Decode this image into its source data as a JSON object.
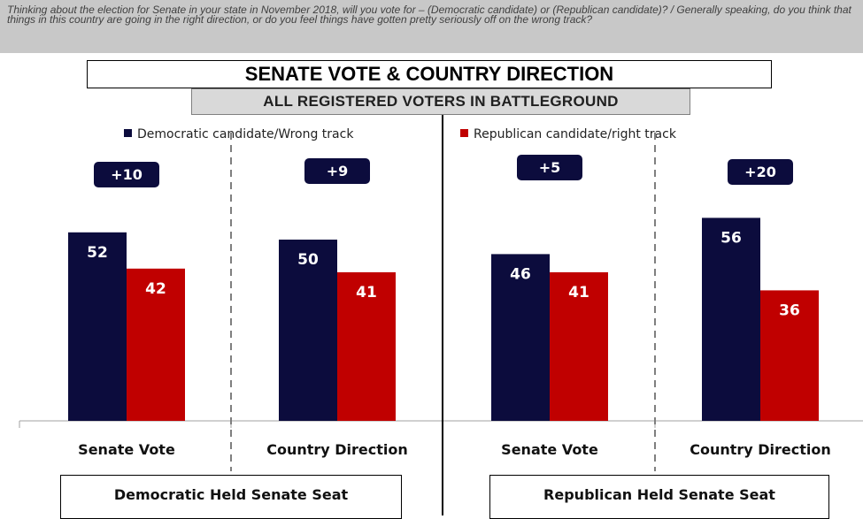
{
  "question": "Thinking about the election for Senate in your state in November 2018, will you vote for – (Democratic candidate) or (Republican candidate)? / Generally speaking, do you think that things in this country are going in the right direction, or do you feel things have gotten pretty seriously off on the wrong track?",
  "colors": {
    "democratic": "#0c0c3d",
    "republican": "#c00000",
    "margin_badge": "#0c0c3d"
  },
  "chart_data": {
    "type": "bar",
    "title": "SENATE VOTE & COUNTRY DIRECTION",
    "subtitle": "ALL REGISTERED VOTERS IN BATTLEGROUND",
    "categories": [
      "Senate Vote",
      "Country Direction",
      "Senate Vote",
      "Country Direction"
    ],
    "groups": [
      "Democratic Held Senate Seat",
      "Republican Held Senate Seat"
    ],
    "series": [
      {
        "name": "Democratic candidate/Wrong track",
        "values": [
          52,
          50,
          46,
          56
        ]
      },
      {
        "name": "Republican candidate/right track",
        "values": [
          42,
          41,
          41,
          36
        ]
      }
    ],
    "margins": [
      "+10",
      "+9",
      "+5",
      "+20"
    ],
    "ylim": [
      0,
      80
    ],
    "grid": false,
    "legend": "top"
  }
}
